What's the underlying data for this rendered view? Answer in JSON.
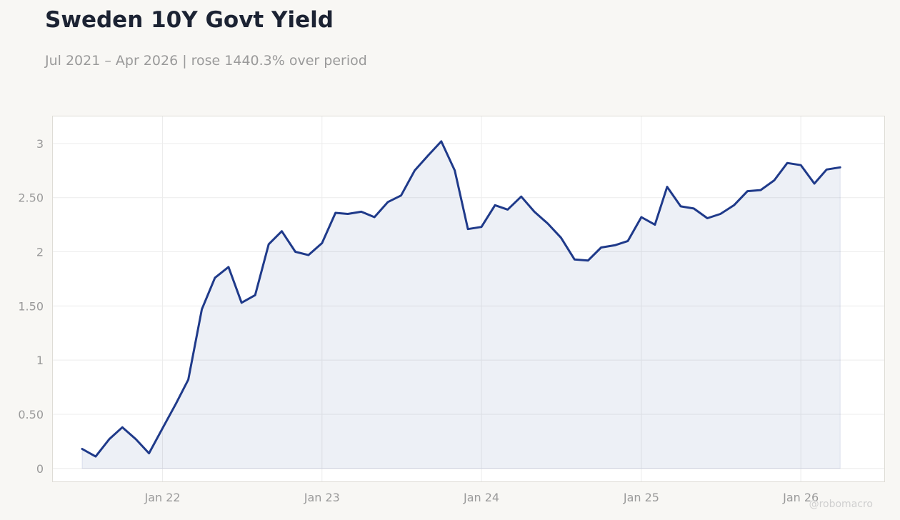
{
  "title": "Sweden 10Y Govt Yield",
  "subtitle": "Jul 2021 – Apr 2026 | rose 1440.3% over period",
  "watermark": "@robomacro",
  "colors": {
    "line": "#1f3a8a",
    "fill": "#1f3a8a",
    "background": "#f8f7f4",
    "plot_bg": "#ffffff"
  },
  "chart_data": {
    "type": "area",
    "title": "Sweden 10Y Govt Yield",
    "xlabel": "",
    "ylabel": "",
    "grid": true,
    "legend": "none",
    "xlim": [
      "2021-04-25",
      "2026-07-11"
    ],
    "ylim": [
      -0.12,
      3.25
    ],
    "yticks": [
      0,
      0.5,
      1,
      1.5,
      2,
      2.5,
      3
    ],
    "ytick_labels": [
      "0",
      "0.50",
      "1",
      "1.50",
      "2",
      "2.50",
      "3"
    ],
    "xticks": [
      "2022-01-01",
      "2023-01-01",
      "2024-01-01",
      "2025-01-01",
      "2026-01-01"
    ],
    "xtick_labels": [
      "Jan 22",
      "Jan 23",
      "Jan 24",
      "Jan 25",
      "Jan 26"
    ],
    "series": [
      {
        "x": [
          "2021-07-01",
          "2021-08-01",
          "2021-09-01",
          "2021-10-01",
          "2021-11-01",
          "2021-12-01",
          "2022-01-01",
          "2022-02-01",
          "2022-03-01",
          "2022-04-01",
          "2022-05-01",
          "2022-06-01",
          "2022-07-01",
          "2022-08-01",
          "2022-09-01",
          "2022-10-01",
          "2022-11-01",
          "2022-12-01",
          "2023-01-01",
          "2023-02-01",
          "2023-03-01",
          "2023-04-01",
          "2023-05-01",
          "2023-06-01",
          "2023-07-01",
          "2023-08-01",
          "2023-09-01",
          "2023-10-01",
          "2023-11-01",
          "2023-12-01",
          "2024-01-01",
          "2024-02-01",
          "2024-03-01",
          "2024-04-01",
          "2024-05-01",
          "2024-06-01",
          "2024-07-01",
          "2024-08-01",
          "2024-09-01",
          "2024-10-01",
          "2024-11-01",
          "2024-12-01",
          "2025-01-01",
          "2025-02-01",
          "2025-03-01",
          "2025-04-01",
          "2025-05-01",
          "2025-06-01",
          "2025-07-01",
          "2025-08-01",
          "2025-09-01",
          "2025-10-01",
          "2025-11-01",
          "2025-12-01",
          "2026-01-01",
          "2026-02-01",
          "2026-03-01",
          "2026-04-01"
        ],
        "y": [
          0.18,
          0.11,
          0.27,
          0.38,
          0.27,
          0.14,
          0.37,
          0.6,
          0.82,
          1.47,
          1.76,
          1.86,
          1.53,
          1.6,
          2.07,
          2.19,
          2.0,
          1.97,
          2.08,
          2.36,
          2.35,
          2.37,
          2.32,
          2.46,
          2.52,
          2.75,
          2.89,
          3.02,
          2.75,
          2.21,
          2.23,
          2.43,
          2.39,
          2.51,
          2.37,
          2.26,
          2.13,
          1.93,
          1.92,
          2.04,
          2.06,
          2.1,
          2.32,
          2.25,
          2.6,
          2.42,
          2.4,
          2.31,
          2.35,
          2.43,
          2.56,
          2.57,
          2.66,
          2.82,
          2.8,
          2.63,
          2.76,
          2.78
        ]
      }
    ]
  }
}
